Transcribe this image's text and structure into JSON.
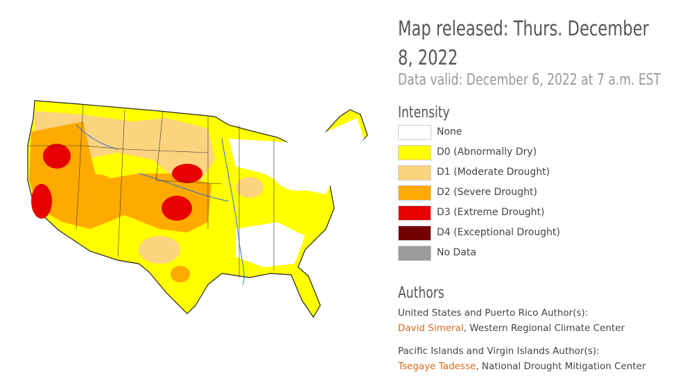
{
  "header": {
    "released": "Map released: Thurs. December 8, 2022",
    "valid": "Data valid: December 6, 2022 at 7 a.m. EST"
  },
  "legend": {
    "title": "Intensity",
    "items": [
      {
        "label": "None",
        "color": "#ffffff"
      },
      {
        "label": "D0 (Abnormally Dry)",
        "color": "#ffff00"
      },
      {
        "label": "D1 (Moderate Drought)",
        "color": "#fcd37f"
      },
      {
        "label": "D2 (Severe Drought)",
        "color": "#ffaa00"
      },
      {
        "label": "D3 (Extreme Drought)",
        "color": "#e60000"
      },
      {
        "label": "D4 (Exceptional Drought)",
        "color": "#730000"
      },
      {
        "label": "No Data",
        "color": "#9b9b9b"
      }
    ]
  },
  "authors": {
    "title": "Authors",
    "groups": [
      {
        "heading": "United States and Puerto Rico Author(s):",
        "name": "David Simeral",
        "affiliation": ", Western Regional Climate Center"
      },
      {
        "heading": "Pacific Islands and Virgin Islands Author(s):",
        "name": "Tsegaye Tadesse",
        "affiliation": ", National Drought Mitigation Center"
      }
    ]
  }
}
